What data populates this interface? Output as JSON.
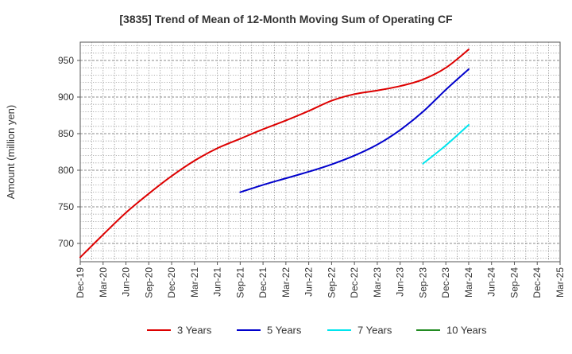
{
  "chart_data": {
    "type": "line",
    "title": "[3835]  Trend of Mean of 12-Month Moving Sum of Operating CF",
    "xlabel": "",
    "ylabel": "Amount (million yen)",
    "ylim": [
      675,
      975
    ],
    "yticks": [
      700,
      750,
      800,
      850,
      900,
      950
    ],
    "grid": true,
    "legend_position": "bottom",
    "categories": [
      "Dec-19",
      "Mar-20",
      "Jun-20",
      "Sep-20",
      "Dec-20",
      "Mar-21",
      "Jun-21",
      "Sep-21",
      "Dec-21",
      "Mar-22",
      "Jun-22",
      "Sep-22",
      "Dec-22",
      "Mar-23",
      "Jun-23",
      "Sep-23",
      "Dec-23",
      "Mar-24",
      "Jun-24",
      "Sep-24",
      "Dec-24",
      "Mar-25"
    ],
    "series": [
      {
        "name": "3 Years",
        "color": "#dd0000",
        "values": [
          681,
          712,
          742,
          768,
          792,
          813,
          830,
          843,
          856,
          868,
          881,
          895,
          904,
          909,
          915,
          924,
          940,
          965,
          null,
          null,
          null,
          null
        ]
      },
      {
        "name": "5 Years",
        "color": "#0000cc",
        "values": [
          null,
          null,
          null,
          null,
          null,
          null,
          null,
          770,
          780,
          789,
          798,
          808,
          820,
          835,
          855,
          880,
          910,
          938,
          null,
          null,
          null,
          null
        ]
      },
      {
        "name": "7 Years",
        "color": "#00e5ee",
        "values": [
          null,
          null,
          null,
          null,
          null,
          null,
          null,
          null,
          null,
          null,
          null,
          null,
          null,
          null,
          null,
          809,
          834,
          862,
          null,
          null,
          null,
          null
        ]
      },
      {
        "name": "10 Years",
        "color": "#228b22",
        "values": [
          null,
          null,
          null,
          null,
          null,
          null,
          null,
          null,
          null,
          null,
          null,
          null,
          null,
          null,
          null,
          null,
          null,
          null,
          null,
          null,
          null,
          null
        ]
      }
    ]
  }
}
